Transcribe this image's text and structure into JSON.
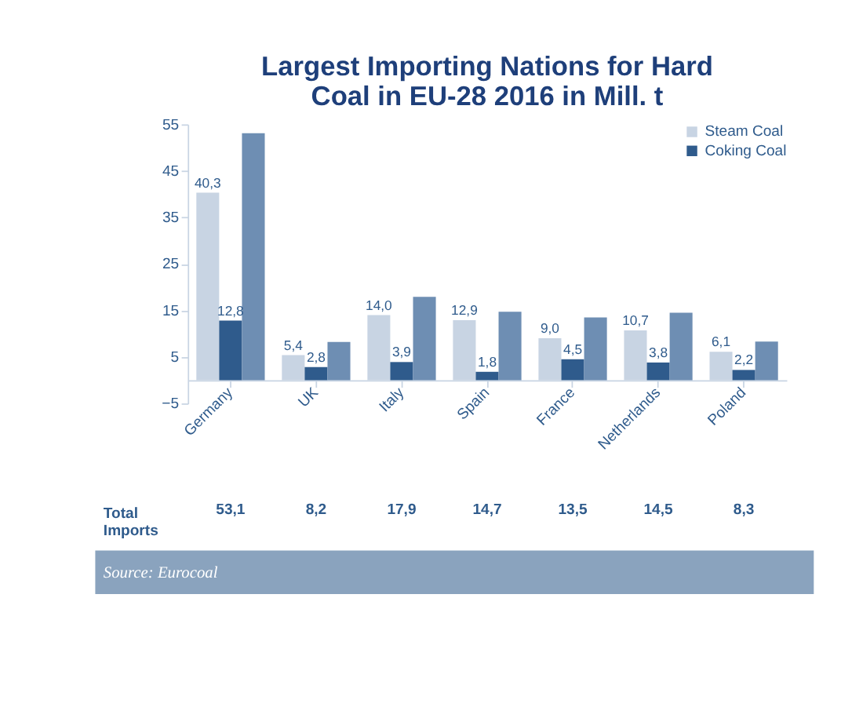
{
  "chart_data": {
    "type": "bar",
    "title": [
      "Largest Importing Nations for Hard",
      "Coal in EU-28 2016 in Mill. t"
    ],
    "categories": [
      "Germany",
      "UK",
      "Italy",
      "Spain",
      "France",
      "Netherlands",
      "Poland"
    ],
    "series": [
      {
        "name": "Steam Coal",
        "color": "#c8d4e3",
        "values": [
          40.3,
          5.4,
          14.0,
          12.9,
          9.0,
          10.7,
          6.1
        ],
        "value_labels": [
          "40,3",
          "5,4",
          "14,0",
          "12,9",
          "9,0",
          "10,7",
          "6,1"
        ]
      },
      {
        "name": "Coking Coal",
        "color": "#2f5b8c",
        "values": [
          12.8,
          2.8,
          3.9,
          1.8,
          4.5,
          3.8,
          2.2
        ],
        "value_labels": [
          "12,8",
          "2,8",
          "3,9",
          "1,8",
          "4,5",
          "3,8",
          "2,2"
        ]
      },
      {
        "color": "#6e8eb3",
        "values": [
          53.1,
          8.2,
          17.9,
          14.7,
          13.5,
          14.5,
          8.3
        ],
        "value_labels": [
          "53,1",
          "8,2",
          "17,9",
          "14,7",
          "13,5",
          "14,5",
          "8,3"
        ]
      }
    ],
    "ylim": [
      -5,
      55
    ],
    "yticks": [
      -5,
      5,
      15,
      25,
      35,
      45,
      55
    ],
    "grid": false,
    "legend": "top right",
    "annotations": [
      "Total\nImports",
      "Source: Eurocoal"
    ]
  }
}
